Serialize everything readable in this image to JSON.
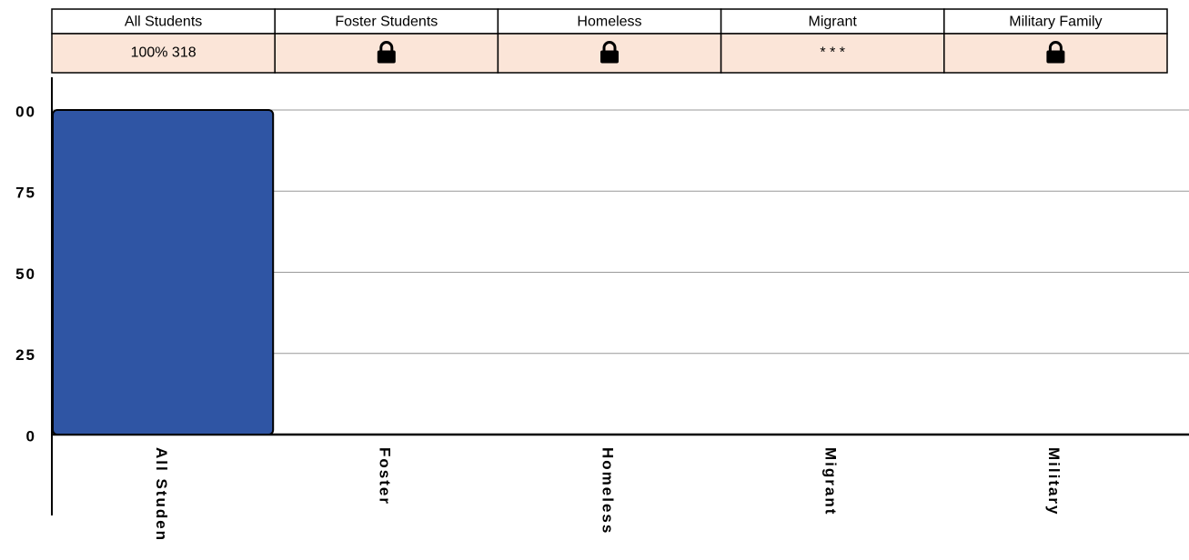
{
  "table": {
    "headers": [
      "All Students",
      "Foster Students",
      "Homeless",
      "Migrant",
      "Military Family"
    ],
    "row": [
      {
        "text": "100%  318"
      },
      {
        "locked": true
      },
      {
        "locked": true
      },
      {
        "text": "* * *"
      },
      {
        "locked": true
      }
    ]
  },
  "chart_data": {
    "type": "bar",
    "categories": [
      "All Studen",
      "Foster",
      "Homeless",
      "Migrant",
      "Military"
    ],
    "values": [
      100,
      null,
      null,
      null,
      null
    ],
    "color": "#2f55a4",
    "ylim": [
      0,
      100
    ],
    "yticks": [
      0,
      25,
      50,
      75,
      {
        "value": 100,
        "label": "00"
      }
    ],
    "grid": true
  }
}
